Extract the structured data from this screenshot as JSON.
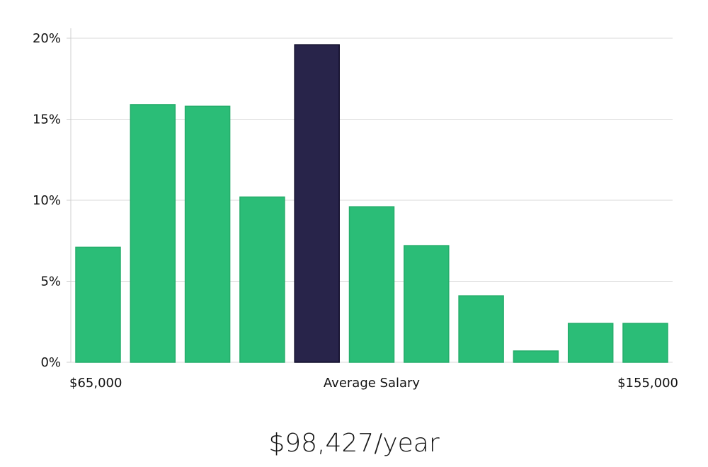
{
  "colors": {
    "bar": "#2bbd77",
    "bar_stroke": "#25ad6b",
    "highlight": "#28244a",
    "highlight_stroke": "#0e0b28",
    "grid": "#d9d9d9",
    "axis": "#cfcfcf"
  },
  "chart_data": {
    "type": "bar",
    "title": "",
    "xlabel": "",
    "ylabel": "",
    "ylim": [
      0,
      20
    ],
    "yticks": [
      {
        "value": 0,
        "label": "0%"
      },
      {
        "value": 5,
        "label": "5%"
      },
      {
        "value": 10,
        "label": "10%"
      },
      {
        "value": 15,
        "label": "15%"
      },
      {
        "value": 20,
        "label": "20%"
      }
    ],
    "values": [
      7.1,
      15.9,
      15.8,
      10.2,
      19.6,
      9.6,
      7.2,
      4.1,
      0.7,
      2.4,
      2.4
    ],
    "highlight_index": 4,
    "x_labels": {
      "start": "$65,000",
      "middle": "Average Salary",
      "end": "$155,000"
    }
  },
  "summary": {
    "average_salary": "$98,427/year"
  }
}
